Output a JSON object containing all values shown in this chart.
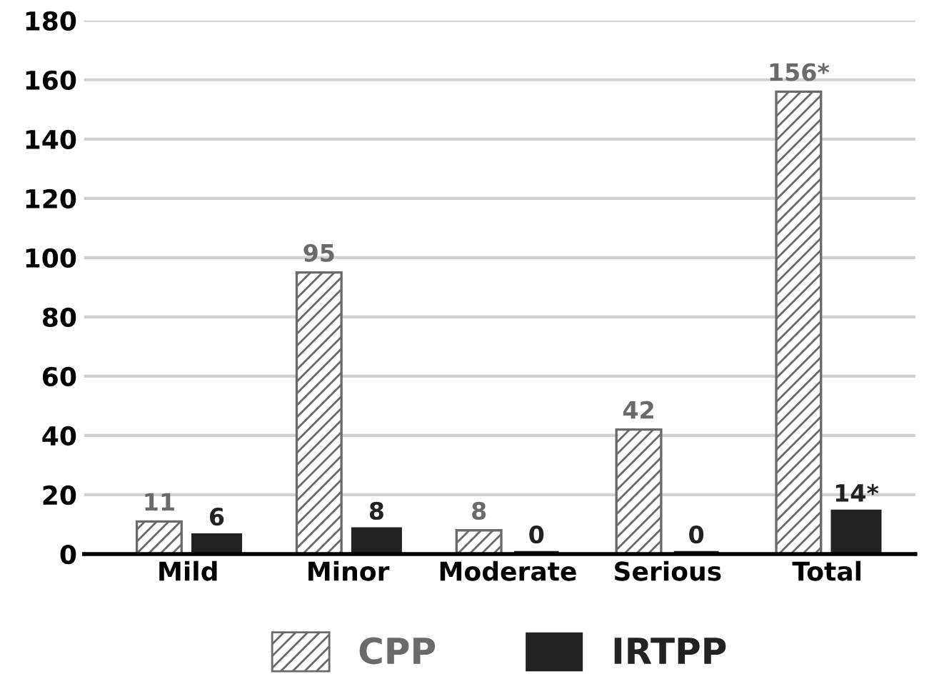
{
  "chart_data": {
    "type": "bar",
    "categories": [
      "Mild",
      "Minor",
      "Moderate",
      "Serious",
      "Total"
    ],
    "series": [
      {
        "name": "CPP",
        "color": "#6a6a6a",
        "values": [
          11,
          95,
          8,
          42,
          156
        ],
        "value_labels": [
          "11",
          "95",
          "8",
          "42",
          "156*"
        ]
      },
      {
        "name": "IRTPP",
        "color": "#222222",
        "values": [
          6,
          8,
          0,
          0,
          14
        ],
        "value_labels": [
          "6",
          "8",
          "0",
          "0",
          "14*"
        ]
      }
    ],
    "ylim": [
      0,
      180
    ],
    "yticks": [
      0,
      20,
      40,
      60,
      80,
      100,
      120,
      140,
      160,
      180
    ],
    "grid": "y",
    "legend": "bottom"
  }
}
